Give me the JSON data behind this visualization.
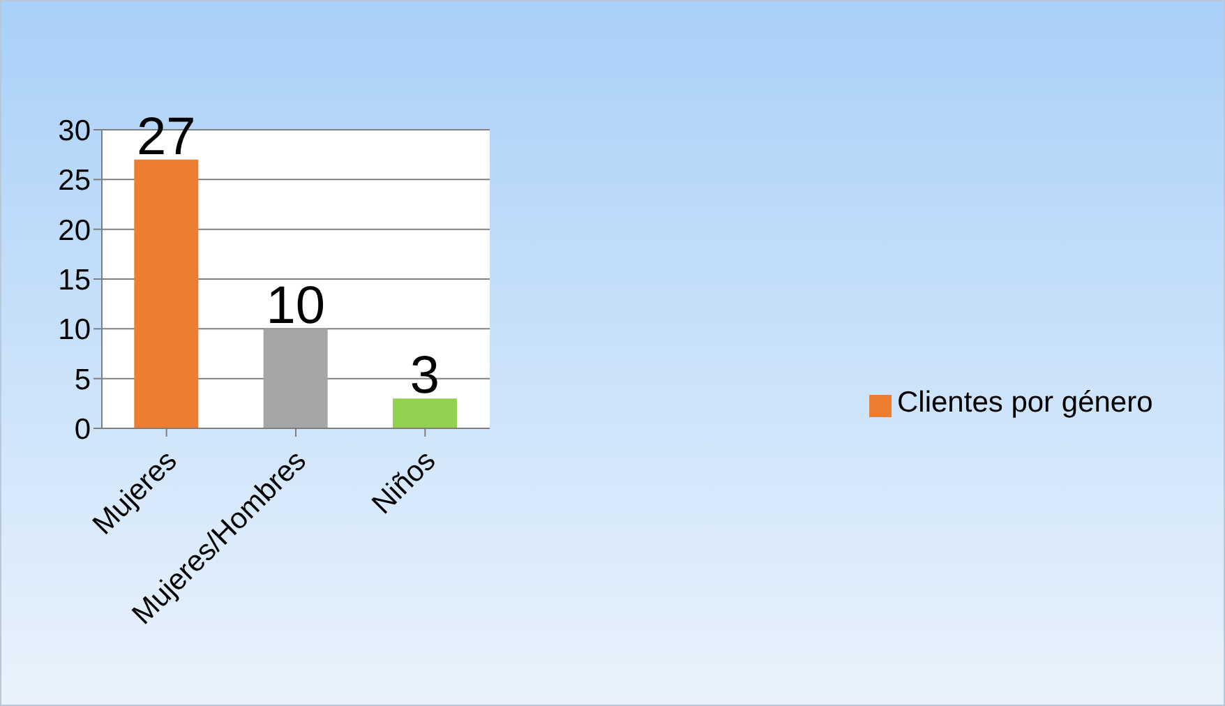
{
  "chart_data": {
    "type": "bar",
    "categories": [
      "Mujeres",
      "Mujeres/Hombres",
      "Niños"
    ],
    "series": [
      {
        "name": "Clientes por género",
        "color": "#ed7d31",
        "colors": [
          "#ed7d31",
          "#a5a5a5",
          "#92d050"
        ],
        "values": [
          27,
          10,
          3
        ]
      }
    ],
    "ylim": [
      0,
      30
    ],
    "yticks": [
      0,
      5,
      10,
      15,
      20,
      25,
      30
    ],
    "grid": "y",
    "legend": "right",
    "data_labels": true
  }
}
